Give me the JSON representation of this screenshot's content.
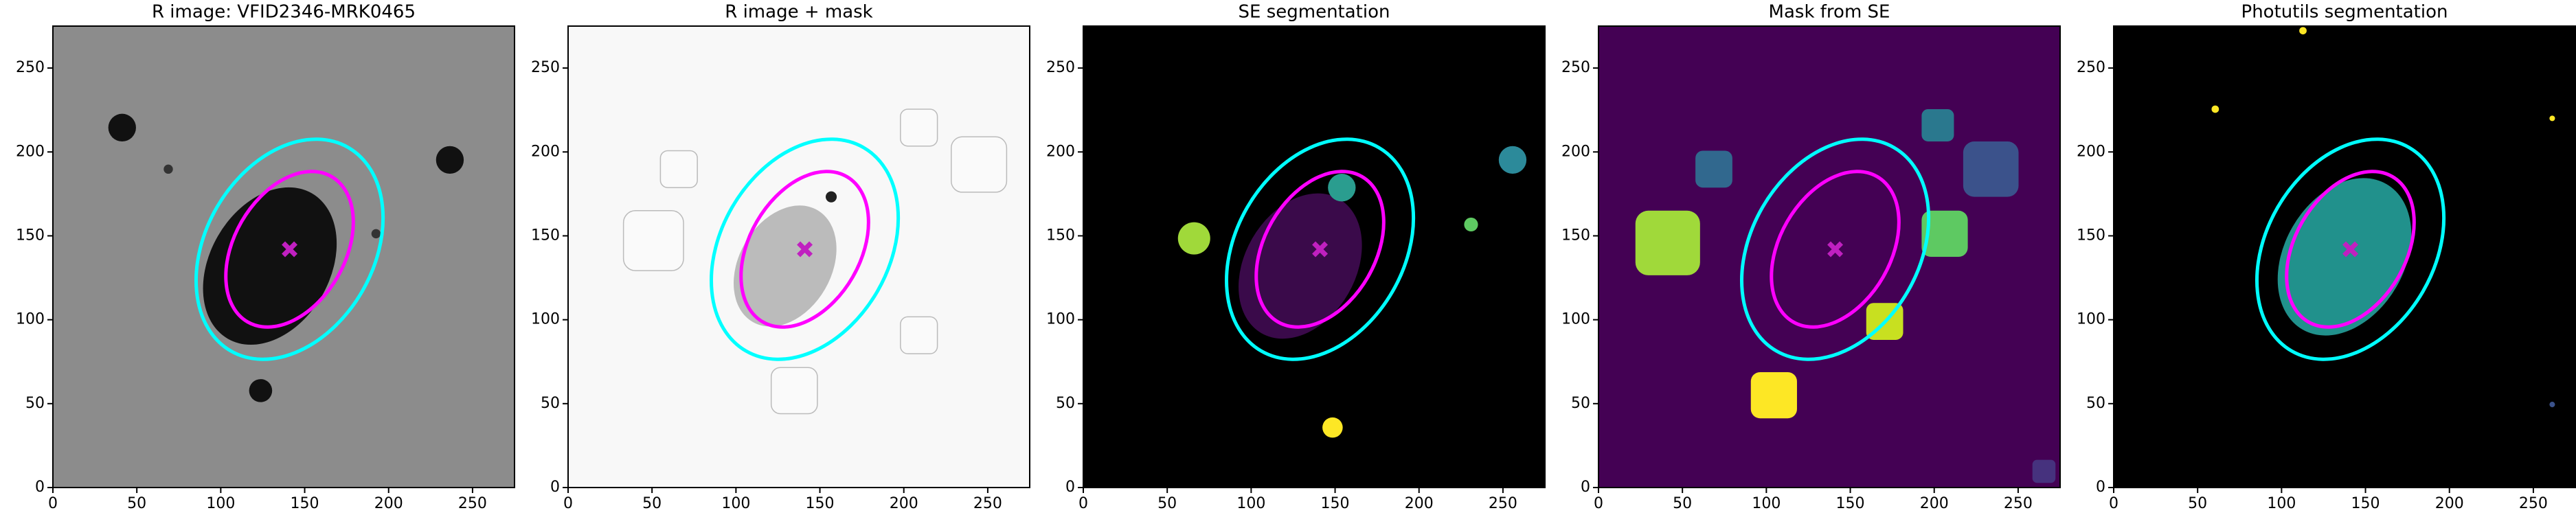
{
  "chart_data": [
    {
      "type": "image",
      "title": "R image: VFID2346-MRK0465",
      "background": "#8c8c8c",
      "xlim": [
        0,
        275
      ],
      "ylim": [
        0,
        275
      ],
      "xticks": [
        0,
        50,
        100,
        150,
        200,
        250
      ],
      "yticks": [
        0,
        50,
        100,
        150,
        200,
        250
      ],
      "ellipses": [
        {
          "cx": 141,
          "cy": 142,
          "a": 70,
          "b": 50,
          "angle": 60,
          "color": "#00ffff"
        },
        {
          "cx": 141,
          "cy": 142,
          "a": 50,
          "b": 33,
          "angle": 60,
          "color": "#ff00ff"
        }
      ],
      "center": {
        "x": 141,
        "y": 142,
        "color": "#c020c0"
      }
    },
    {
      "type": "image",
      "title": "R image + mask",
      "background": "#f8f8f8",
      "xlim": [
        0,
        275
      ],
      "ylim": [
        0,
        275
      ],
      "xticks": [
        0,
        50,
        100,
        150,
        200,
        250
      ],
      "yticks": [
        0,
        50,
        100,
        150,
        200,
        250
      ],
      "ellipses": [
        {
          "cx": 141,
          "cy": 142,
          "a": 70,
          "b": 50,
          "angle": 60,
          "color": "#00ffff"
        },
        {
          "cx": 141,
          "cy": 142,
          "a": 50,
          "b": 33,
          "angle": 60,
          "color": "#ff00ff"
        }
      ],
      "center": {
        "x": 141,
        "y": 142,
        "color": "#c020c0"
      }
    },
    {
      "type": "image",
      "title": "SE segmentation",
      "background": "#000000",
      "xlim": [
        0,
        275
      ],
      "ylim": [
        0,
        275
      ],
      "xticks": [
        0,
        50,
        100,
        150,
        200,
        250
      ],
      "yticks": [
        0,
        50,
        100,
        150,
        200,
        250
      ],
      "ellipses": [
        {
          "cx": 141,
          "cy": 142,
          "a": 70,
          "b": 50,
          "angle": 60,
          "color": "#00ffff"
        },
        {
          "cx": 141,
          "cy": 142,
          "a": 50,
          "b": 33,
          "angle": 60,
          "color": "#ff00ff"
        }
      ],
      "center": {
        "x": 141,
        "y": 142,
        "color": "#c020c0"
      }
    },
    {
      "type": "image",
      "title": "Mask from SE",
      "background": "#440154",
      "xlim": [
        0,
        275
      ],
      "ylim": [
        0,
        275
      ],
      "xticks": [
        0,
        50,
        100,
        150,
        200,
        250
      ],
      "yticks": [
        0,
        50,
        100,
        150,
        200,
        250
      ],
      "ellipses": [
        {
          "cx": 141,
          "cy": 142,
          "a": 70,
          "b": 50,
          "angle": 60,
          "color": "#00ffff"
        },
        {
          "cx": 141,
          "cy": 142,
          "a": 50,
          "b": 33,
          "angle": 60,
          "color": "#ff00ff"
        }
      ],
      "center": {
        "x": 141,
        "y": 142,
        "color": "#c020c0"
      }
    },
    {
      "type": "image",
      "title": "Photutils segmentation",
      "background": "#000000",
      "xlim": [
        0,
        275
      ],
      "ylim": [
        0,
        275
      ],
      "xticks": [
        0,
        50,
        100,
        150,
        200,
        250
      ],
      "yticks": [
        0,
        50,
        100,
        150,
        200,
        250
      ],
      "ellipses": [
        {
          "cx": 141,
          "cy": 142,
          "a": 70,
          "b": 50,
          "angle": 60,
          "color": "#00ffff"
        },
        {
          "cx": 141,
          "cy": 142,
          "a": 50,
          "b": 33,
          "angle": 60,
          "color": "#ff00ff"
        }
      ],
      "center": {
        "x": 141,
        "y": 142,
        "color": "#c020c0"
      }
    }
  ]
}
